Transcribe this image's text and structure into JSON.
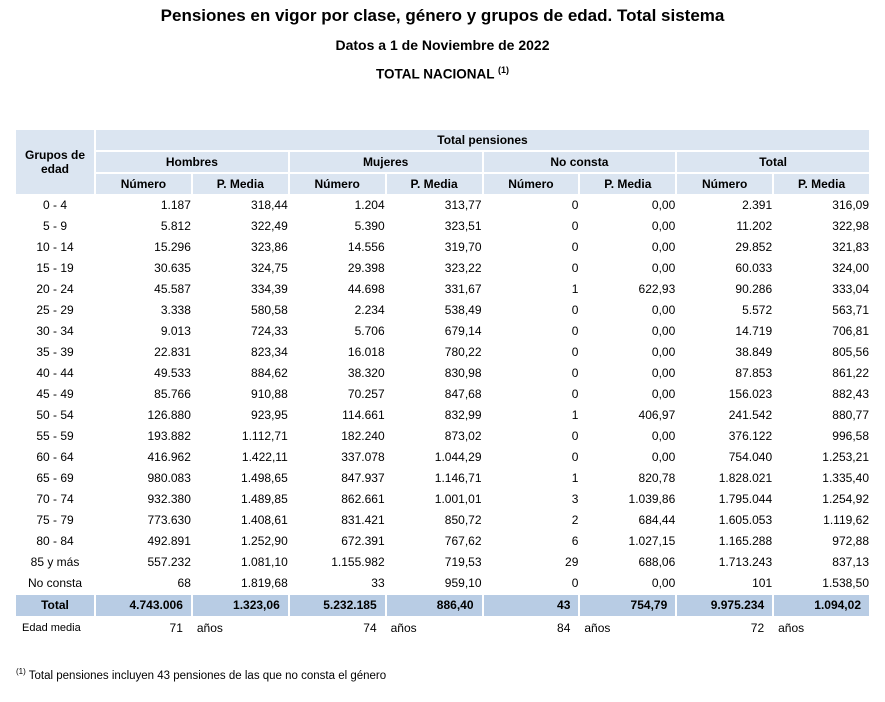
{
  "header": {
    "title": "Pensiones en vigor por clase, género y grupos de edad. Total sistema",
    "subtitle": "Datos a 1 de Noviembre de 2022",
    "region": "TOTAL NACIONAL",
    "region_note_ref": "(1)"
  },
  "table": {
    "corner_label": "Grupos de edad",
    "top_header": "Total pensiones",
    "groups": [
      "Hombres",
      "Mujeres",
      "No consta",
      "Total"
    ],
    "subheaders": [
      "Número",
      "P. Media"
    ],
    "rows": [
      {
        "label": "0 - 4",
        "values": [
          "1.187",
          "318,44",
          "1.204",
          "313,77",
          "0",
          "0,00",
          "2.391",
          "316,09"
        ]
      },
      {
        "label": "5 - 9",
        "values": [
          "5.812",
          "322,49",
          "5.390",
          "323,51",
          "0",
          "0,00",
          "11.202",
          "322,98"
        ]
      },
      {
        "label": "10 - 14",
        "values": [
          "15.296",
          "323,86",
          "14.556",
          "319,70",
          "0",
          "0,00",
          "29.852",
          "321,83"
        ]
      },
      {
        "label": "15 - 19",
        "values": [
          "30.635",
          "324,75",
          "29.398",
          "323,22",
          "0",
          "0,00",
          "60.033",
          "324,00"
        ]
      },
      {
        "label": "20 - 24",
        "values": [
          "45.587",
          "334,39",
          "44.698",
          "331,67",
          "1",
          "622,93",
          "90.286",
          "333,04"
        ]
      },
      {
        "label": "25 - 29",
        "values": [
          "3.338",
          "580,58",
          "2.234",
          "538,49",
          "0",
          "0,00",
          "5.572",
          "563,71"
        ]
      },
      {
        "label": "30 - 34",
        "values": [
          "9.013",
          "724,33",
          "5.706",
          "679,14",
          "0",
          "0,00",
          "14.719",
          "706,81"
        ]
      },
      {
        "label": "35 - 39",
        "values": [
          "22.831",
          "823,34",
          "16.018",
          "780,22",
          "0",
          "0,00",
          "38.849",
          "805,56"
        ]
      },
      {
        "label": "40 - 44",
        "values": [
          "49.533",
          "884,62",
          "38.320",
          "830,98",
          "0",
          "0,00",
          "87.853",
          "861,22"
        ]
      },
      {
        "label": "45 - 49",
        "values": [
          "85.766",
          "910,88",
          "70.257",
          "847,68",
          "0",
          "0,00",
          "156.023",
          "882,43"
        ]
      },
      {
        "label": "50 - 54",
        "values": [
          "126.880",
          "923,95",
          "114.661",
          "832,99",
          "1",
          "406,97",
          "241.542",
          "880,77"
        ]
      },
      {
        "label": "55 - 59",
        "values": [
          "193.882",
          "1.112,71",
          "182.240",
          "873,02",
          "0",
          "0,00",
          "376.122",
          "996,58"
        ]
      },
      {
        "label": "60 - 64",
        "values": [
          "416.962",
          "1.422,11",
          "337.078",
          "1.044,29",
          "0",
          "0,00",
          "754.040",
          "1.253,21"
        ]
      },
      {
        "label": "65 - 69",
        "values": [
          "980.083",
          "1.498,65",
          "847.937",
          "1.146,71",
          "1",
          "820,78",
          "1.828.021",
          "1.335,40"
        ]
      },
      {
        "label": "70 - 74",
        "values": [
          "932.380",
          "1.489,85",
          "862.661",
          "1.001,01",
          "3",
          "1.039,86",
          "1.795.044",
          "1.254,92"
        ]
      },
      {
        "label": "75 - 79",
        "values": [
          "773.630",
          "1.408,61",
          "831.421",
          "850,72",
          "2",
          "684,44",
          "1.605.053",
          "1.119,62"
        ]
      },
      {
        "label": "80 - 84",
        "values": [
          "492.891",
          "1.252,90",
          "672.391",
          "767,62",
          "6",
          "1.027,15",
          "1.165.288",
          "972,88"
        ]
      },
      {
        "label": "85 y más",
        "values": [
          "557.232",
          "1.081,10",
          "1.155.982",
          "719,53",
          "29",
          "688,06",
          "1.713.243",
          "837,13"
        ]
      },
      {
        "label": "No consta",
        "values": [
          "68",
          "1.819,68",
          "33",
          "959,10",
          "0",
          "0,00",
          "101",
          "1.538,50"
        ]
      }
    ],
    "total_row": {
      "label": "Total",
      "values": [
        "4.743.006",
        "1.323,06",
        "5.232.185",
        "886,40",
        "43",
        "754,79",
        "9.975.234",
        "1.094,02"
      ]
    },
    "edad_media": {
      "label": "Edad media",
      "values": [
        "71",
        "74",
        "84",
        "72"
      ],
      "unit": "años"
    }
  },
  "footnote": {
    "ref": "(1)",
    "text": " Total pensiones incluyen 43 pensiones de las que no consta el género"
  },
  "colors": {
    "header_bg": "#dbe5f1",
    "total_bg": "#b8cce4",
    "text": "#000000"
  }
}
